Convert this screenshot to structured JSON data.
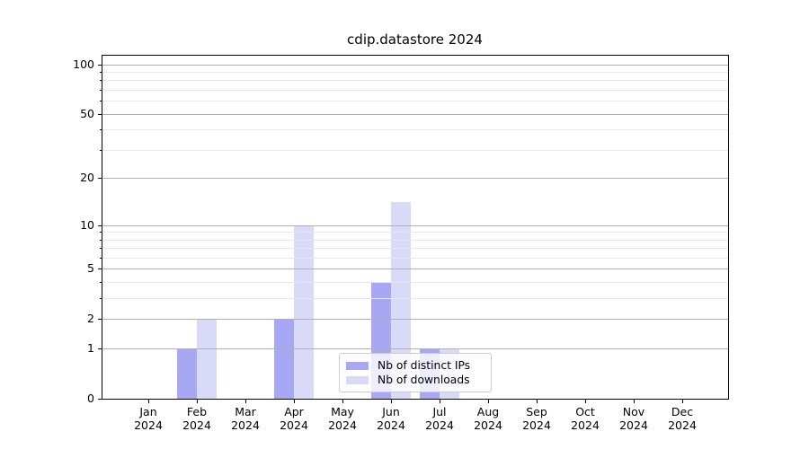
{
  "chart_data": {
    "type": "bar",
    "title": "cdip.datastore 2024",
    "categories": [
      "Jan",
      "Feb",
      "Mar",
      "Apr",
      "May",
      "Jun",
      "Jul",
      "Aug",
      "Sep",
      "Oct",
      "Nov",
      "Dec"
    ],
    "x_tick_second_line": "2024",
    "series": [
      {
        "name": "Nb of distinct IPs",
        "color": "#a7a7f3",
        "values": [
          0,
          1,
          0,
          2,
          0,
          4,
          1,
          0,
          0,
          0,
          0,
          0
        ]
      },
      {
        "name": "Nb of downloads",
        "color": "#d9d9f8",
        "values": [
          0,
          2,
          0,
          10,
          0,
          14,
          1,
          0,
          0,
          0,
          0,
          0
        ]
      }
    ],
    "yscale": "log10(value+1)",
    "yticks_major": [
      0,
      1,
      2,
      5,
      10,
      20,
      50,
      100
    ],
    "yticks_minor": [
      3,
      4,
      6,
      7,
      8,
      9,
      30,
      40,
      60,
      70,
      80,
      90
    ],
    "ylim": [
      0,
      112
    ],
    "xlabel": "",
    "ylabel": "",
    "grid": "both",
    "legend_location": "lower center"
  }
}
